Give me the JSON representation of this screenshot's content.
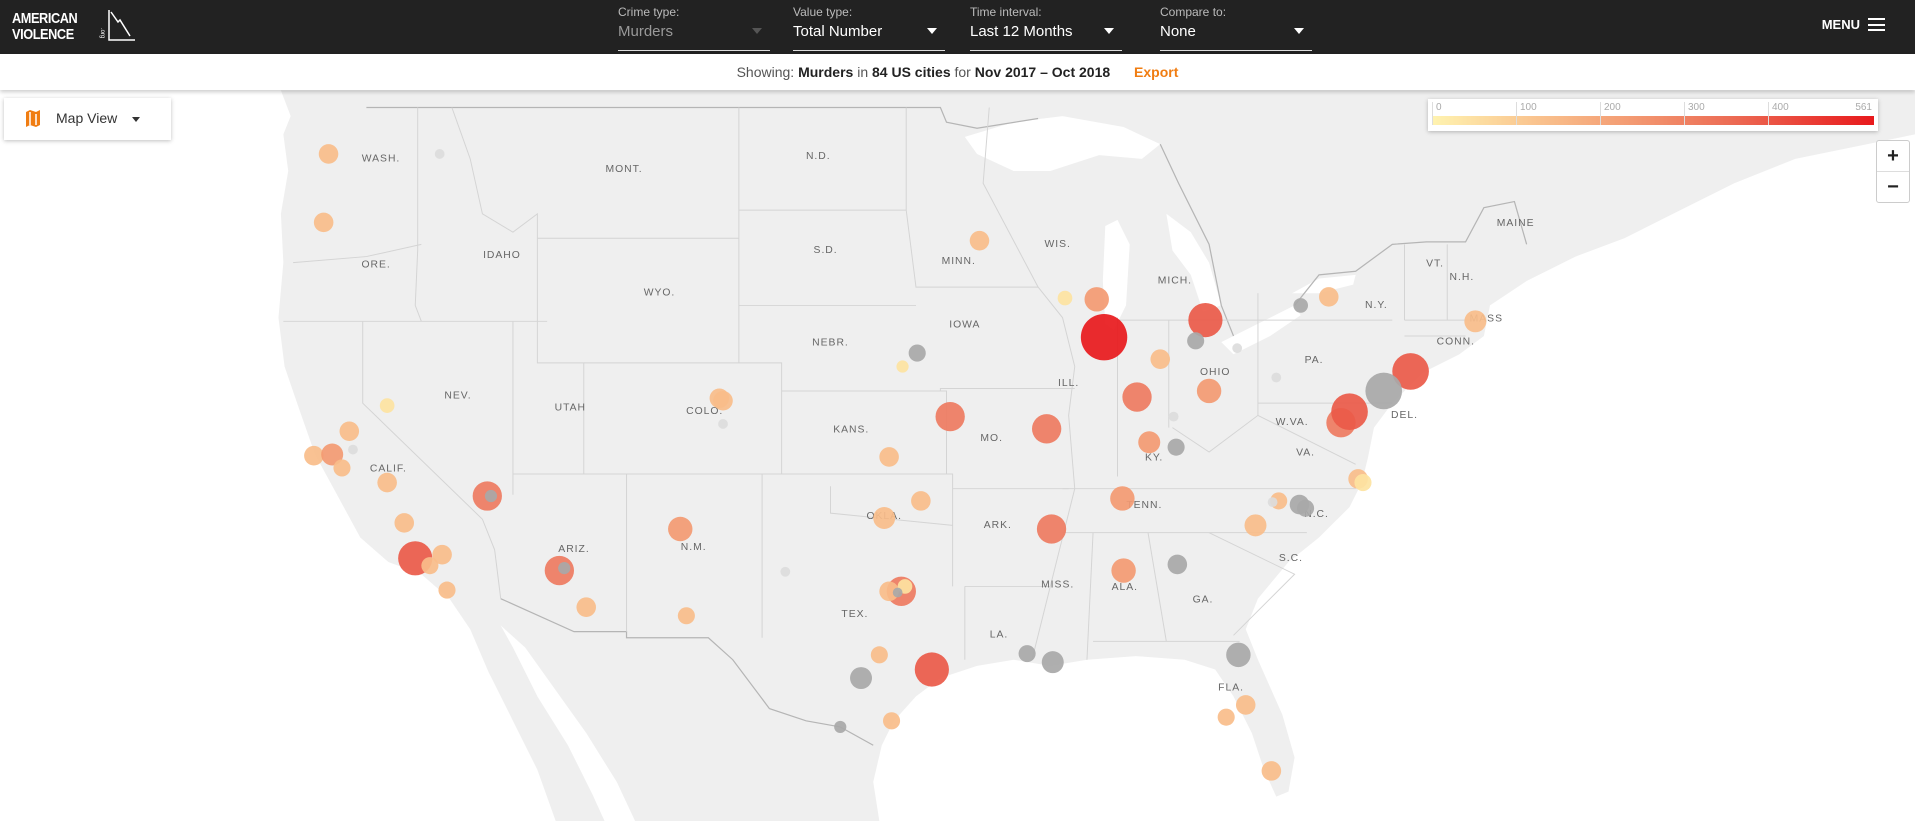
{
  "header": {
    "logo_line1": "AMERICAN",
    "logo_line2": "VIOLENCE",
    "logo_suffix": ".org",
    "filters": [
      {
        "label": "Crime type:",
        "value": "Murders",
        "disabled": true
      },
      {
        "label": "Value type:",
        "value": "Total Number"
      },
      {
        "label": "Time interval:",
        "value": "Last 12 Months"
      },
      {
        "label": "Compare to:",
        "value": "None"
      }
    ],
    "menu_label": "MENU"
  },
  "summary": {
    "prefix": "Showing:",
    "crime": "Murders",
    "in": "in",
    "cities": "84 US cities",
    "for": "for",
    "period": "Nov 2017 – Oct 2018",
    "export_label": "Export"
  },
  "map_view": {
    "label": "Map View"
  },
  "legend": {
    "ticks": [
      "0",
      "100",
      "200",
      "300",
      "400",
      "561"
    ],
    "min_color": "#fff3b0",
    "max_color": "#e8191c"
  },
  "zoom": {
    "in": "+",
    "out": "−"
  },
  "states": [
    "WASH.",
    "MONT.",
    "N.D.",
    "MINN.",
    "ORE.",
    "IDAHO",
    "S.D.",
    "WIS.",
    "MICH.",
    "WYO.",
    "IOWA",
    "NEBR.",
    "N.Y.",
    "VT.",
    "N.H.",
    "MAINE",
    "MASS",
    "CONN.",
    "PA.",
    "NEV.",
    "UTAH",
    "COLO.",
    "KANS.",
    "ILL.",
    "OHIO",
    "MO.",
    "W.VA.",
    "DEL.",
    "KY.",
    "VA.",
    "CALIF.",
    "ARK.",
    "TENN.",
    "N.C.",
    "OKLA.",
    "ARIZ.",
    "N.M.",
    "S.C.",
    "MISS.",
    "ALA.",
    "GA.",
    "TEX.",
    "LA.",
    "FLA."
  ],
  "colors": {
    "header_bg": "#222222",
    "accent": "#f07d12",
    "land": "#efefef",
    "no_data": "#a8a8a8"
  }
}
